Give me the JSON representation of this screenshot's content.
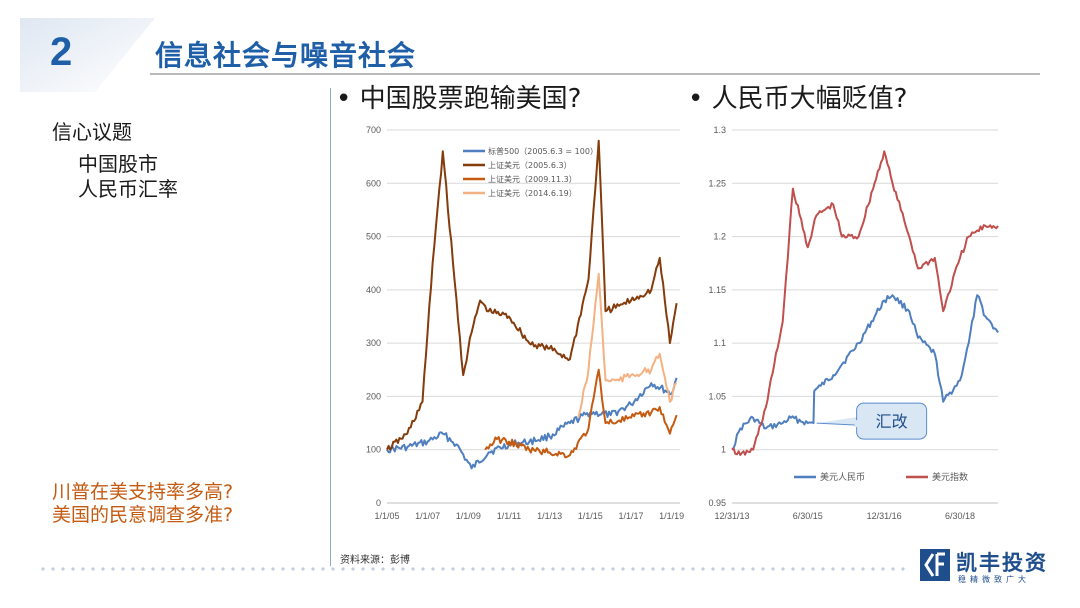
{
  "slide": {
    "number": "2",
    "title": "信息社会与噪音社会",
    "left_heading": "信心议题",
    "left_items": [
      "中国股市",
      "人民币汇率"
    ],
    "questions": [
      "川普在美支持率多高?",
      "美国的民意调查多准?"
    ],
    "source": "资料来源：彭博",
    "logo_text": "凯丰投资",
    "logo_sub": "稳精微致广大",
    "bullets": [
      "中国股票跑输美国?",
      "人民币大幅贬值?"
    ],
    "accent_color": "#1f5fa8",
    "question_color": "#c55a11"
  },
  "chart_data": [
    {
      "type": "line",
      "title": "",
      "ylim": [
        0,
        700
      ],
      "yticks": [
        0,
        100,
        200,
        300,
        400,
        500,
        600,
        700
      ],
      "xlim": [
        "2005-01-01",
        "2019-06-01"
      ],
      "xtick_labels": [
        "1/1/05",
        "1/1/07",
        "1/1/09",
        "1/1/11",
        "1/1/13",
        "1/1/15",
        "1/1/17",
        "1/1/19"
      ],
      "xtick_dates": [
        "2005-01-01",
        "2007-01-01",
        "2009-01-01",
        "2011-01-01",
        "2013-01-01",
        "2015-01-01",
        "2017-01-01",
        "2019-01-01"
      ],
      "legend_position": "top-left",
      "series": [
        {
          "name": "标普500（2005.6.3 = 100）",
          "color": "#4f7fbf",
          "x": [
            "2005-01-01",
            "2006-01-01",
            "2007-01-01",
            "2007-10-01",
            "2008-06-01",
            "2009-03-01",
            "2010-01-01",
            "2011-01-01",
            "2012-01-01",
            "2013-01-01",
            "2014-01-01",
            "2015-01-01",
            "2016-01-01",
            "2017-01-01",
            "2018-01-01",
            "2019-01-01",
            "2019-04-01"
          ],
          "y": [
            100,
            105,
            115,
            130,
            110,
            65,
            95,
            110,
            115,
            125,
            150,
            170,
            165,
            185,
            225,
            205,
            235
          ]
        },
        {
          "name": "上证美元（2005.6.3）",
          "color": "#843c0c",
          "x": [
            "2005-01-01",
            "2006-01-01",
            "2006-10-01",
            "2007-04-01",
            "2007-10-01",
            "2008-04-01",
            "2008-10-01",
            "2009-03-01",
            "2009-08-01",
            "2010-01-01",
            "2011-01-01",
            "2012-01-01",
            "2013-01-01",
            "2014-01-01",
            "2014-12-01",
            "2015-06-01",
            "2015-10-01",
            "2016-06-01",
            "2017-01-01",
            "2018-01-01",
            "2018-06-01",
            "2018-12-01",
            "2019-04-01"
          ],
          "y": [
            100,
            130,
            190,
            450,
            660,
            450,
            240,
            320,
            380,
            360,
            350,
            300,
            290,
            270,
            420,
            680,
            360,
            370,
            380,
            400,
            460,
            300,
            375
          ]
        },
        {
          "name": "上证美元（2009.11.3）",
          "color": "#c55a11",
          "x": [
            "2009-11-01",
            "2010-06-01",
            "2011-01-01",
            "2012-01-01",
            "2013-01-01",
            "2014-01-01",
            "2014-12-01",
            "2015-06-01",
            "2015-10-01",
            "2016-06-01",
            "2017-01-01",
            "2018-01-01",
            "2018-06-01",
            "2018-12-01",
            "2019-04-01"
          ],
          "y": [
            100,
            120,
            115,
            100,
            95,
            90,
            140,
            250,
            150,
            155,
            160,
            170,
            180,
            130,
            165
          ]
        },
        {
          "name": "上证美元（2014.6.19）",
          "color": "#f4b183",
          "x": [
            "2014-06-01",
            "2014-12-01",
            "2015-06-01",
            "2015-10-01",
            "2016-06-01",
            "2017-01-01",
            "2018-01-01",
            "2018-06-01",
            "2018-12-01",
            "2019-04-01"
          ],
          "y": [
            160,
            250,
            430,
            230,
            230,
            240,
            250,
            280,
            190,
            225
          ]
        }
      ]
    },
    {
      "type": "line",
      "title": "",
      "ylim": [
        0.95,
        1.3
      ],
      "yticks": [
        0.95,
        1,
        1.05,
        1.1,
        1.15,
        1.2,
        1.25,
        1.3
      ],
      "ytick_labels": [
        "0.95",
        "1",
        "1.05",
        "1.1",
        "1.15",
        "1.2",
        "1.25",
        "1.3"
      ],
      "xlim": [
        "2013-12-31",
        "2019-03-31"
      ],
      "xtick_labels": [
        "12/31/13",
        "6/30/15",
        "12/31/16",
        "6/30/18"
      ],
      "xtick_dates": [
        "2013-12-31",
        "2015-06-30",
        "2016-12-31",
        "2018-06-30"
      ],
      "legend_position": "bottom",
      "annotation": {
        "text": "汇改",
        "date": "2015-08-11",
        "value": 1.025
      },
      "series": [
        {
          "name": "美元人民币",
          "color": "#4f7fbf",
          "x": [
            "2013-12-31",
            "2014-03-01",
            "2014-06-01",
            "2014-09-01",
            "2014-12-31",
            "2015-03-01",
            "2015-06-30",
            "2015-08-10",
            "2015-08-15",
            "2015-10-01",
            "2015-12-31",
            "2016-03-01",
            "2016-06-30",
            "2016-12-31",
            "2017-03-01",
            "2017-06-30",
            "2017-09-01",
            "2017-12-31",
            "2018-03-01",
            "2018-06-30",
            "2018-09-01",
            "2018-11-01",
            "2018-12-31",
            "2019-03-31"
          ],
          "y": [
            1.0,
            1.02,
            1.03,
            1.02,
            1.025,
            1.03,
            1.025,
            1.025,
            1.055,
            1.06,
            1.07,
            1.08,
            1.1,
            1.14,
            1.145,
            1.13,
            1.105,
            1.09,
            1.045,
            1.065,
            1.1,
            1.145,
            1.125,
            1.11
          ]
        },
        {
          "name": "美元指数",
          "color": "#c0504d",
          "x": [
            "2013-12-31",
            "2014-03-01",
            "2014-06-01",
            "2014-09-01",
            "2014-12-31",
            "2015-03-15",
            "2015-06-30",
            "2015-09-01",
            "2015-12-31",
            "2016-03-01",
            "2016-06-30",
            "2016-12-31",
            "2017-03-01",
            "2017-06-30",
            "2017-09-01",
            "2017-12-31",
            "2018-03-01",
            "2018-06-30",
            "2018-09-01",
            "2018-12-31",
            "2019-03-31"
          ],
          "y": [
            1.0,
            0.995,
            1.0,
            1.04,
            1.12,
            1.245,
            1.19,
            1.22,
            1.23,
            1.2,
            1.2,
            1.28,
            1.25,
            1.2,
            1.17,
            1.18,
            1.13,
            1.18,
            1.2,
            1.21,
            1.21
          ]
        }
      ]
    }
  ]
}
